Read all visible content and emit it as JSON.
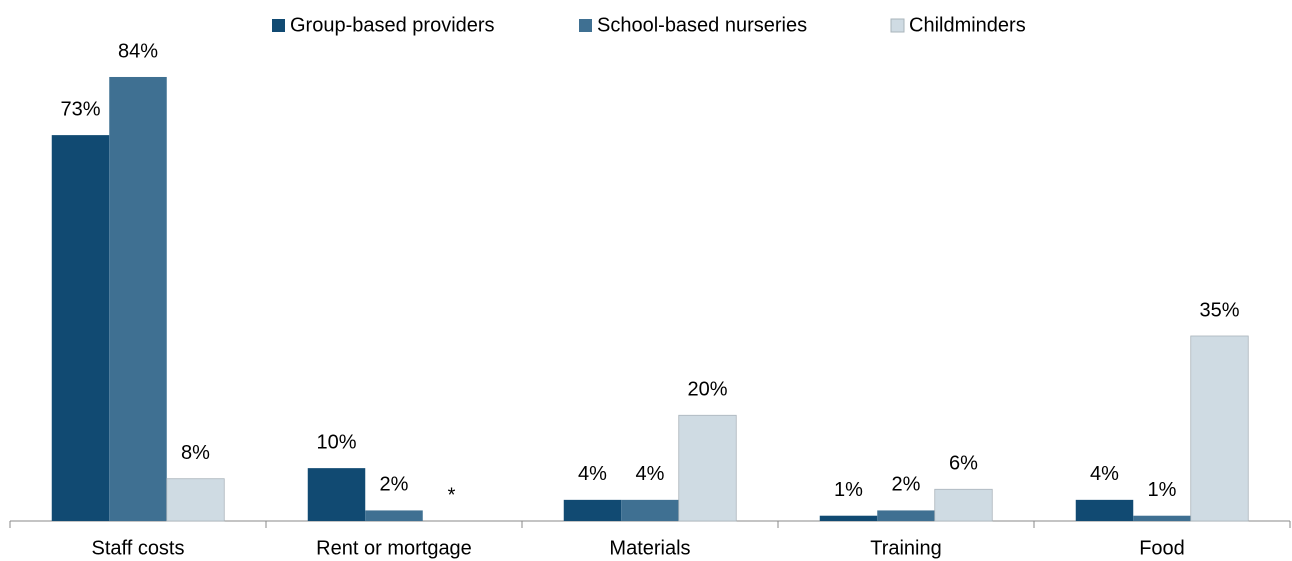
{
  "chart_data": {
    "type": "bar",
    "categories": [
      "Staff costs",
      "Rent or mortgage",
      "Materials",
      "Training",
      "Food"
    ],
    "series": [
      {
        "name": "Group-based providers",
        "color": "#114a72",
        "values": [
          73,
          10,
          4,
          1,
          4
        ],
        "value_labels": [
          "73%",
          "10%",
          "4%",
          "1%",
          "4%"
        ]
      },
      {
        "name": "School-based nurseries",
        "color": "#3f7092",
        "values": [
          84,
          2,
          4,
          2,
          1
        ],
        "value_labels": [
          "84%",
          "2%",
          "4%",
          "2%",
          "1%"
        ]
      },
      {
        "name": "Childminders",
        "color": "#cfdbe3",
        "values": [
          8,
          null,
          20,
          6,
          35
        ],
        "value_labels": [
          "8%",
          "*",
          "20%",
          "6%",
          "35%"
        ]
      }
    ],
    "legend": "top"
  }
}
